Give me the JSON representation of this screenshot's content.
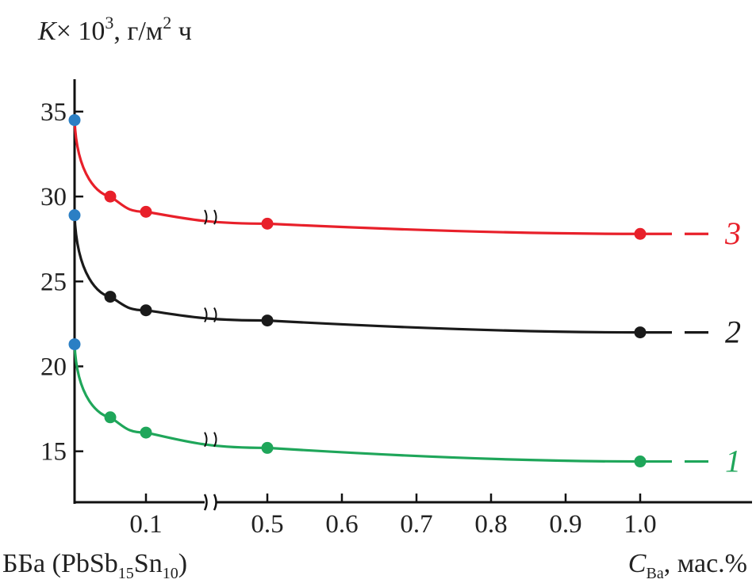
{
  "chart_data": {
    "type": "line",
    "ylabel": {
      "k": "K",
      "times": "× 10",
      "exp": "3",
      "unit1": ", г/м",
      "exp2": "2",
      "unit2": " ч"
    },
    "xlabel": {
      "c": "C",
      "sub": "Ba",
      "unit": ", мас.%"
    },
    "base_label": {
      "main": "ББа (PbSb",
      "s1": "15",
      "mid": "Sn",
      "s2": "10",
      "end": ")"
    },
    "ylim": [
      12,
      37
    ],
    "y_ticks": [
      15,
      20,
      25,
      30,
      35
    ],
    "x_ticks": [
      "0.1",
      "0.5",
      "0.6",
      "0.7",
      "0.8",
      "0.9",
      "1.0"
    ],
    "x_axis_break": true,
    "grid": false,
    "series": [
      {
        "name": "1",
        "color": "#1fa65a",
        "points": [
          {
            "x": 0,
            "y": 21.3
          },
          {
            "x": 0.05,
            "y": 17.0
          },
          {
            "x": 0.1,
            "y": 16.1
          },
          {
            "x": 0.5,
            "y": 15.2
          },
          {
            "x": 1.0,
            "y": 14.4
          }
        ]
      },
      {
        "name": "2",
        "color": "#1a1a1a",
        "points": [
          {
            "x": 0,
            "y": 28.9
          },
          {
            "x": 0.05,
            "y": 24.1
          },
          {
            "x": 0.1,
            "y": 23.3
          },
          {
            "x": 0.5,
            "y": 22.7
          },
          {
            "x": 1.0,
            "y": 22.0
          }
        ]
      },
      {
        "name": "3",
        "color": "#e8202a",
        "points": [
          {
            "x": 0,
            "y": 34.5
          },
          {
            "x": 0.05,
            "y": 30.0
          },
          {
            "x": 0.1,
            "y": 29.1
          },
          {
            "x": 0.5,
            "y": 28.4
          },
          {
            "x": 1.0,
            "y": 27.8
          }
        ]
      }
    ],
    "base_point_color": "#2b7fc4"
  }
}
